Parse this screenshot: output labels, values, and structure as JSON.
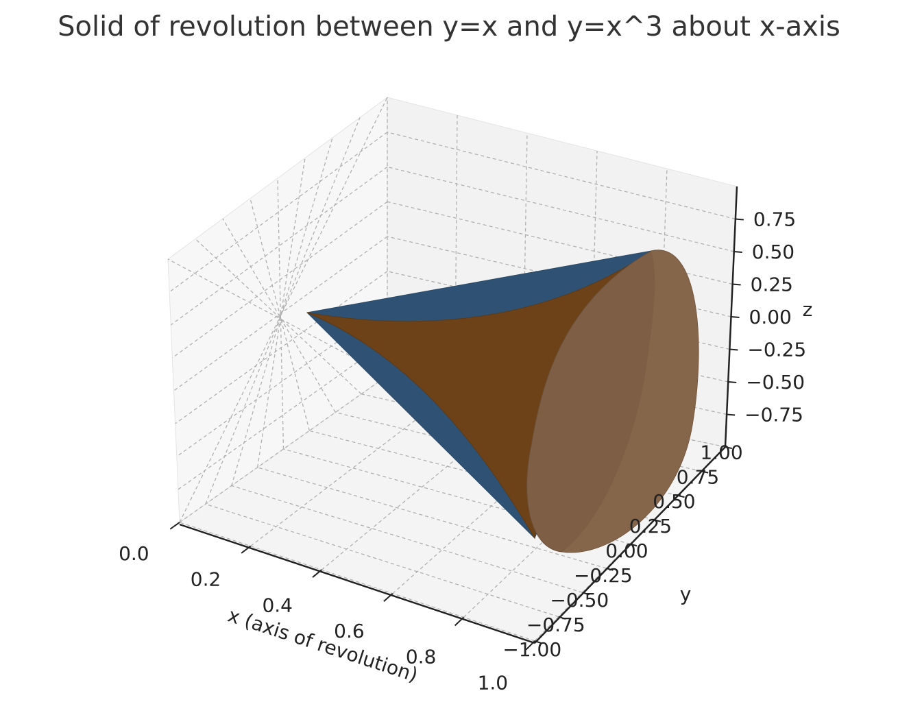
{
  "chart_data": {
    "type": "surface3d",
    "title": "Solid of revolution between y=x and y=x^3 about x-axis",
    "xlabel": "x (axis of revolution)",
    "ylabel": "y",
    "zlabel": "z",
    "xlim": [
      0,
      1
    ],
    "ylim": [
      -1,
      1
    ],
    "zlim": [
      -1,
      1
    ],
    "x_ticks": [
      "0.0",
      "0.2",
      "0.4",
      "0.6",
      "0.8",
      "1.0"
    ],
    "y_ticks": [
      "−1.00",
      "−0.75",
      "−0.50",
      "−0.25",
      "0.00",
      "0.25",
      "0.50",
      "0.75",
      "1.00"
    ],
    "z_ticks": [
      "−0.75",
      "−0.50",
      "−0.25",
      "0.00",
      "0.25",
      "0.50",
      "0.75"
    ],
    "grid": true,
    "curves": [
      {
        "function": "y=x",
        "role": "outer surface",
        "color": "#1f4e79"
      },
      {
        "function": "y=x^3",
        "role": "inner surface",
        "color": "#7a4a1e"
      }
    ],
    "end_cap": {
      "x": 1.0,
      "radius": 1.0,
      "color": "#8a6a4f"
    }
  }
}
